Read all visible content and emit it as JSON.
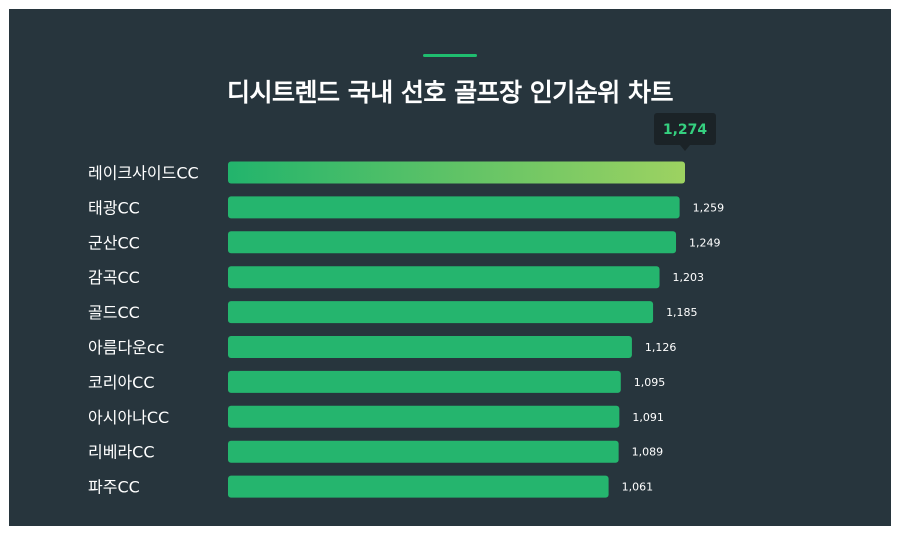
{
  "chart_data": {
    "type": "bar",
    "orientation": "horizontal",
    "title": "디시트렌드 국내 선호 골프장 인기순위 차트",
    "categories": [
      "레이크사이드CC",
      "태광CC",
      "군산CC",
      "감곡CC",
      "골드CC",
      "아름다운cc",
      "코리아CC",
      "아시아나CC",
      "리베라CC",
      "파주CC"
    ],
    "values": [
      1274,
      1259,
      1249,
      1203,
      1185,
      1126,
      1095,
      1091,
      1089,
      1061
    ],
    "value_labels": [
      "1,274",
      "1,259",
      "1,249",
      "1,203",
      "1,185",
      "1,126",
      "1,095",
      "1,091",
      "1,089",
      "1,061"
    ],
    "xlim": [
      0,
      1274
    ],
    "grid": false,
    "legend": "none",
    "colors": {
      "background": "#27353d",
      "bar": "#25b56e",
      "top_bar_gradient_start": "#22b46c",
      "top_bar_gradient_end": "#9dd261",
      "highlight_text": "#35d07f",
      "tooltip_bg": "#1b2327",
      "accent": "#1fbd6f"
    }
  }
}
